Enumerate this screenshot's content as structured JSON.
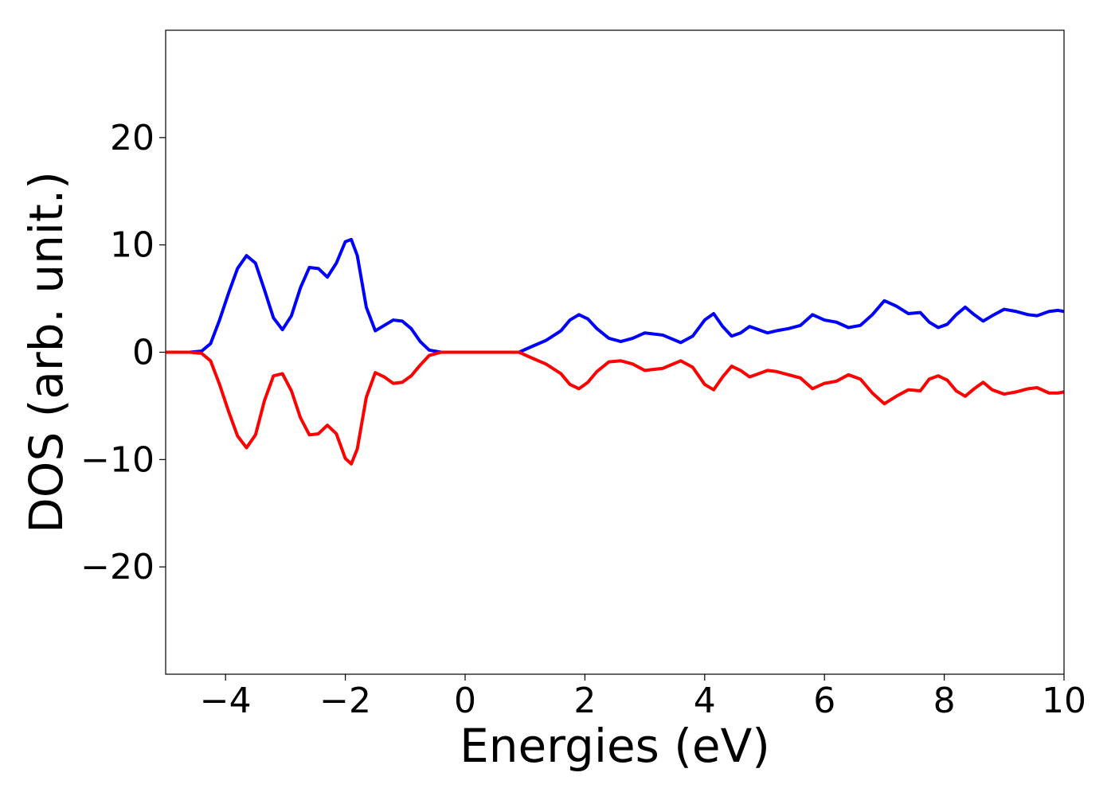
{
  "chart_data": {
    "type": "line",
    "title": "",
    "xlabel": "Energies (eV)",
    "ylabel": "DOS (arb. unit.)",
    "xlim": [
      -5,
      10
    ],
    "ylim": [
      -30,
      30
    ],
    "grid": false,
    "xticks": [
      -4,
      -2,
      0,
      2,
      4,
      6,
      8,
      10
    ],
    "yticks": [
      -20,
      -10,
      0,
      10,
      20
    ],
    "xtick_labels": [
      "−4",
      "−2",
      "0",
      "2",
      "4",
      "6",
      "8",
      "10"
    ],
    "ytick_labels": [
      "−20",
      "−10",
      "0",
      "10",
      "20"
    ],
    "series": [
      {
        "color": "#0000ff",
        "points": [
          [
            -5,
            0
          ],
          [
            -4.6,
            0
          ],
          [
            -4.4,
            0.1
          ],
          [
            -4.25,
            0.8
          ],
          [
            -4.1,
            3
          ],
          [
            -3.95,
            5.5
          ],
          [
            -3.8,
            7.8
          ],
          [
            -3.65,
            9
          ],
          [
            -3.5,
            8.3
          ],
          [
            -3.35,
            5.8
          ],
          [
            -3.2,
            3.2
          ],
          [
            -3.05,
            2.1
          ],
          [
            -2.9,
            3.4
          ],
          [
            -2.75,
            6
          ],
          [
            -2.6,
            7.9
          ],
          [
            -2.45,
            7.8
          ],
          [
            -2.3,
            7
          ],
          [
            -2.15,
            8.3
          ],
          [
            -2.0,
            10.3
          ],
          [
            -1.9,
            10.5
          ],
          [
            -1.8,
            9
          ],
          [
            -1.65,
            4.2
          ],
          [
            -1.5,
            2
          ],
          [
            -1.35,
            2.5
          ],
          [
            -1.2,
            3.0
          ],
          [
            -1.05,
            2.9
          ],
          [
            -0.9,
            2.2
          ],
          [
            -0.75,
            1
          ],
          [
            -0.6,
            0.2
          ],
          [
            -0.4,
            0
          ],
          [
            0.9,
            0
          ],
          [
            1.1,
            0.5
          ],
          [
            1.35,
            1.1
          ],
          [
            1.6,
            2
          ],
          [
            1.75,
            3
          ],
          [
            1.9,
            3.5
          ],
          [
            2.05,
            3.1
          ],
          [
            2.2,
            2.2
          ],
          [
            2.4,
            1.3
          ],
          [
            2.6,
            1.0
          ],
          [
            2.8,
            1.3
          ],
          [
            3.0,
            1.8
          ],
          [
            3.3,
            1.6
          ],
          [
            3.6,
            0.9
          ],
          [
            3.8,
            1.5
          ],
          [
            4.0,
            3.0
          ],
          [
            4.15,
            3.6
          ],
          [
            4.3,
            2.4
          ],
          [
            4.45,
            1.5
          ],
          [
            4.6,
            1.8
          ],
          [
            4.75,
            2.4
          ],
          [
            4.9,
            2.1
          ],
          [
            5.05,
            1.8
          ],
          [
            5.2,
            2.0
          ],
          [
            5.4,
            2.2
          ],
          [
            5.6,
            2.5
          ],
          [
            5.8,
            3.5
          ],
          [
            6.0,
            3.0
          ],
          [
            6.2,
            2.8
          ],
          [
            6.4,
            2.3
          ],
          [
            6.6,
            2.5
          ],
          [
            6.8,
            3.5
          ],
          [
            7.0,
            4.8
          ],
          [
            7.2,
            4.3
          ],
          [
            7.4,
            3.6
          ],
          [
            7.6,
            3.7
          ],
          [
            7.75,
            2.8
          ],
          [
            7.9,
            2.3
          ],
          [
            8.05,
            2.6
          ],
          [
            8.2,
            3.5
          ],
          [
            8.35,
            4.2
          ],
          [
            8.5,
            3.5
          ],
          [
            8.65,
            2.9
          ],
          [
            8.8,
            3.4
          ],
          [
            9.0,
            4.0
          ],
          [
            9.2,
            3.8
          ],
          [
            9.4,
            3.5
          ],
          [
            9.55,
            3.4
          ],
          [
            9.75,
            3.8
          ],
          [
            9.9,
            3.9
          ],
          [
            10,
            3.8
          ]
        ]
      },
      {
        "color": "#ff0000",
        "points": [
          [
            -5,
            0
          ],
          [
            -4.6,
            0
          ],
          [
            -4.4,
            -0.1
          ],
          [
            -4.25,
            -0.8
          ],
          [
            -4.1,
            -3
          ],
          [
            -3.95,
            -5.5
          ],
          [
            -3.8,
            -7.8
          ],
          [
            -3.65,
            -8.9
          ],
          [
            -3.5,
            -7.7
          ],
          [
            -3.35,
            -4.5
          ],
          [
            -3.2,
            -2.2
          ],
          [
            -3.05,
            -2.0
          ],
          [
            -2.9,
            -3.6
          ],
          [
            -2.75,
            -6.1
          ],
          [
            -2.6,
            -7.7
          ],
          [
            -2.45,
            -7.6
          ],
          [
            -2.3,
            -6.8
          ],
          [
            -2.15,
            -7.6
          ],
          [
            -2.0,
            -9.9
          ],
          [
            -1.9,
            -10.4
          ],
          [
            -1.8,
            -9
          ],
          [
            -1.65,
            -4.2
          ],
          [
            -1.5,
            -1.9
          ],
          [
            -1.35,
            -2.3
          ],
          [
            -1.2,
            -2.9
          ],
          [
            -1.05,
            -2.8
          ],
          [
            -0.9,
            -2.2
          ],
          [
            -0.75,
            -1.2
          ],
          [
            -0.6,
            -0.3
          ],
          [
            -0.4,
            0
          ],
          [
            0.9,
            0
          ],
          [
            1.1,
            -0.5
          ],
          [
            1.35,
            -1.1
          ],
          [
            1.6,
            -2
          ],
          [
            1.75,
            -3
          ],
          [
            1.9,
            -3.4
          ],
          [
            2.05,
            -2.8
          ],
          [
            2.2,
            -1.8
          ],
          [
            2.4,
            -0.9
          ],
          [
            2.6,
            -0.8
          ],
          [
            2.8,
            -1.1
          ],
          [
            3.0,
            -1.7
          ],
          [
            3.3,
            -1.5
          ],
          [
            3.6,
            -0.8
          ],
          [
            3.8,
            -1.4
          ],
          [
            4.0,
            -3.0
          ],
          [
            4.15,
            -3.5
          ],
          [
            4.3,
            -2.3
          ],
          [
            4.45,
            -1.3
          ],
          [
            4.6,
            -1.7
          ],
          [
            4.75,
            -2.3
          ],
          [
            4.9,
            -2.0
          ],
          [
            5.05,
            -1.7
          ],
          [
            5.2,
            -1.8
          ],
          [
            5.4,
            -2.1
          ],
          [
            5.6,
            -2.4
          ],
          [
            5.8,
            -3.4
          ],
          [
            6.0,
            -2.9
          ],
          [
            6.2,
            -2.7
          ],
          [
            6.4,
            -2.1
          ],
          [
            6.6,
            -2.5
          ],
          [
            6.8,
            -3.8
          ],
          [
            7.0,
            -4.8
          ],
          [
            7.2,
            -4.1
          ],
          [
            7.4,
            -3.5
          ],
          [
            7.6,
            -3.6
          ],
          [
            7.75,
            -2.5
          ],
          [
            7.9,
            -2.2
          ],
          [
            8.05,
            -2.6
          ],
          [
            8.2,
            -3.6
          ],
          [
            8.35,
            -4.1
          ],
          [
            8.5,
            -3.4
          ],
          [
            8.65,
            -2.8
          ],
          [
            8.8,
            -3.5
          ],
          [
            9.0,
            -3.9
          ],
          [
            9.2,
            -3.7
          ],
          [
            9.4,
            -3.4
          ],
          [
            9.55,
            -3.3
          ],
          [
            9.75,
            -3.8
          ],
          [
            9.9,
            -3.8
          ],
          [
            10,
            -3.7
          ]
        ]
      }
    ]
  }
}
